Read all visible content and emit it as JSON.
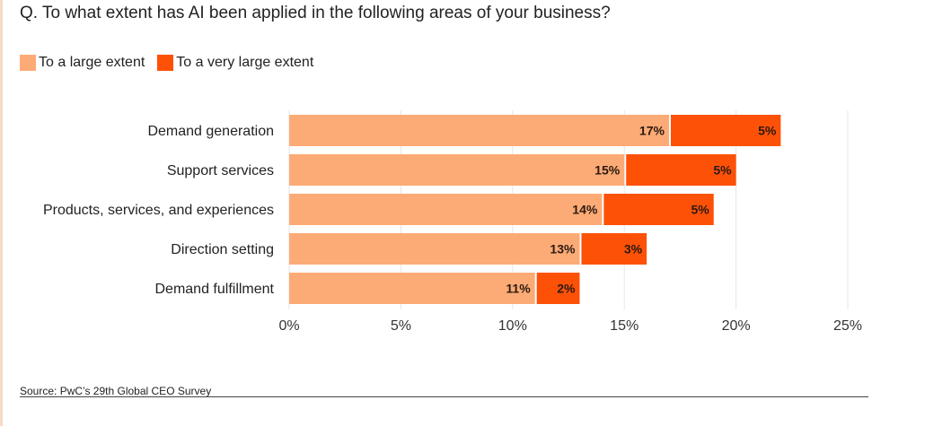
{
  "chart_data": {
    "type": "bar",
    "orientation": "horizontal",
    "stacked": true,
    "title": "Q. To what extent has AI been applied in the following areas of your business?",
    "categories": [
      "Demand generation",
      "Support services",
      "Products, services, and experiences",
      "Direction setting",
      "Demand fulfillment"
    ],
    "series": [
      {
        "name": "To a large extent",
        "color": "#FDAB76",
        "values": [
          17,
          15,
          14,
          13,
          11
        ],
        "labels": [
          "17%",
          "15%",
          "14%",
          "13%",
          "11%"
        ]
      },
      {
        "name": "To a very large extent",
        "color": "#FD5108",
        "values": [
          5,
          5,
          5,
          3,
          2
        ],
        "labels": [
          "5%",
          "5%",
          "5%",
          "3%",
          "2%"
        ]
      }
    ],
    "xlim": [
      0,
      25
    ],
    "xticks": [
      0,
      5,
      10,
      15,
      20,
      25
    ],
    "xtick_labels": [
      "0%",
      "5%",
      "10%",
      "15%",
      "20%",
      "25%"
    ],
    "grid": true,
    "legend_position": "top-left",
    "source": "Source: PwC’s 29th Global CEO Survey"
  }
}
